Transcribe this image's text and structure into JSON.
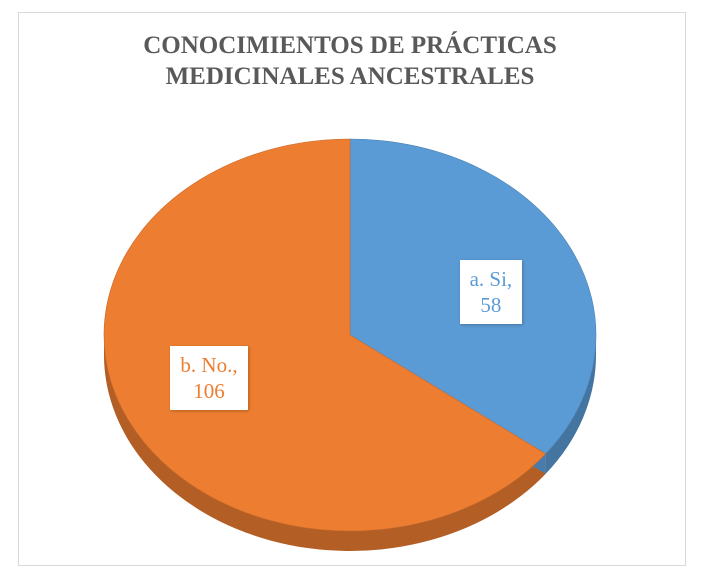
{
  "chart_data": {
    "type": "pie",
    "title": "CONOCIMIENTOS DE PRÁCTICAS MEDICINALES ANCESTRALES",
    "categories": [
      "a. Si,",
      "b. No.,"
    ],
    "values": [
      58,
      106
    ],
    "colors": [
      "#5b9bd5",
      "#ed7d31"
    ]
  }
}
